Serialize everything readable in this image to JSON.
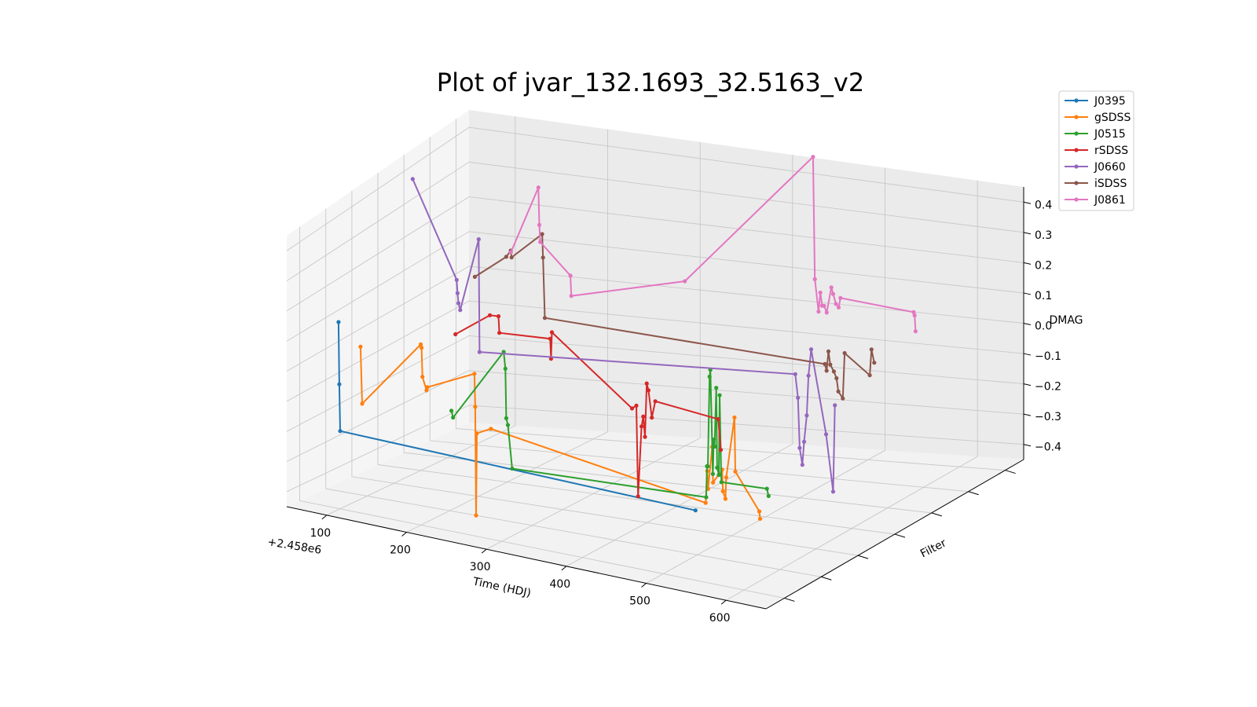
{
  "chart_data": {
    "type": "line",
    "projection": "3d",
    "title": "Plot of jvar_132.1693_32.5163_v2",
    "xlabel": "Time (HDJ)",
    "ylabel": "Filter",
    "zlabel": "DMAG",
    "x_offset_label": "+2.458e6",
    "xlim": [
      50,
      650
    ],
    "zlim": [
      -0.45,
      0.45
    ],
    "x_ticks": [
      100,
      200,
      300,
      400,
      500,
      600
    ],
    "x_tick_labels": [
      "100",
      "200",
      "300",
      "400",
      "500",
      "600"
    ],
    "z_ticks": [
      -0.4,
      -0.3,
      -0.2,
      -0.1,
      0.0,
      0.1,
      0.2,
      0.3,
      0.4
    ],
    "z_tick_labels": [
      "−0.4",
      "−0.3",
      "−0.2",
      "−0.1",
      "0.0",
      "0.1",
      "0.2",
      "0.3",
      "0.4"
    ],
    "grid": true,
    "legend_position": "upper-right",
    "series": [
      {
        "name": "J0395",
        "color": "#1f77b4",
        "filter_index": 0,
        "x": [
          98,
          99,
          100,
          540
        ],
        "y": [
          0.15,
          -0.05,
          -0.2,
          -0.26
        ]
      },
      {
        "name": "gSDSS",
        "color": "#ff7f0e",
        "filter_index": 1,
        "x": [
          92,
          94,
          165,
          166,
          167,
          172,
          173,
          230,
          231,
          232,
          233,
          250,
          510,
          512,
          513,
          518,
          519,
          530,
          531,
          534,
          535,
          545,
          546,
          575,
          576
        ],
        "y": [
          0.02,
          -0.16,
          0.05,
          0.04,
          -0.05,
          -0.09,
          -0.08,
          -0.02,
          -0.12,
          -0.45,
          -0.2,
          -0.18,
          -0.3,
          -0.21,
          -0.26,
          -0.14,
          -0.24,
          -0.2,
          -0.26,
          -0.28,
          -0.22,
          -0.05,
          -0.2,
          -0.3,
          -0.32
        ]
      },
      {
        "name": "J0515",
        "color": "#2ca02c",
        "filter_index": 2,
        "x": [
          168,
          170,
          230,
          232,
          233,
          235,
          240,
          470,
          471,
          472,
          474,
          475,
          478,
          479,
          480,
          482,
          483,
          485,
          486,
          488,
          542,
          544
        ],
        "y": [
          -0.2,
          -0.22,
          0.0,
          -0.05,
          -0.2,
          -0.22,
          -0.35,
          -0.35,
          -0.26,
          -0.26,
          0.0,
          0.02,
          -0.28,
          -0.18,
          -0.2,
          -0.03,
          -0.26,
          -0.28,
          -0.05,
          -0.3,
          -0.3,
          -0.32
        ]
      },
      {
        "name": "rSDSS",
        "color": "#d62728",
        "filter_index": 3,
        "x": [
          140,
          180,
          190,
          191,
          250,
          251,
          252,
          345,
          350,
          352,
          356,
          358,
          360,
          362,
          364,
          368,
          372,
          445,
          448
        ],
        "y": [
          -0.02,
          0.05,
          0.05,
          0.0,
          0.0,
          -0.06,
          0.02,
          -0.18,
          -0.17,
          -0.44,
          -0.23,
          -0.2,
          -0.26,
          -0.1,
          -0.12,
          -0.2,
          -0.15,
          -0.18,
          -0.27
        ]
      },
      {
        "name": "J0660",
        "color": "#9467bd",
        "filter_index": 4,
        "x": [
          60,
          110,
          111,
          112,
          114,
          135,
          136,
          495,
          498,
          500,
          503,
          505,
          508,
          510,
          513,
          530,
          538,
          540
        ],
        "y": [
          0.38,
          0.09,
          0.05,
          0.02,
          0.0,
          0.22,
          -0.12,
          -0.08,
          -0.15,
          -0.3,
          -0.35,
          -0.28,
          -0.2,
          -0.08,
          0.0,
          -0.25,
          -0.42,
          -0.16
        ]
      },
      {
        "name": "iSDSS",
        "color": "#8c564b",
        "filter_index": 5,
        "x": [
          100,
          135,
          140,
          141,
          175,
          176,
          178,
          490,
          492,
          494,
          496,
          500,
          503,
          505,
          510,
          512,
          540,
          542,
          545
        ],
        "y": [
          0.05,
          0.12,
          0.14,
          0.12,
          0.2,
          0.13,
          -0.05,
          -0.1,
          -0.12,
          -0.06,
          -0.1,
          -0.12,
          -0.14,
          -0.18,
          -0.2,
          -0.06,
          -0.12,
          -0.04,
          -0.08
        ]
      },
      {
        "name": "J0861",
        "color": "#e377c2",
        "filter_index": 6,
        "x": [
          110,
          140,
          141,
          142,
          175,
          176,
          300,
          440,
          442,
          446,
          448,
          450,
          452,
          455,
          460,
          462,
          465,
          468,
          470,
          550,
          551,
          552
        ],
        "y": [
          0.08,
          0.28,
          0.17,
          0.12,
          0.03,
          -0.03,
          0.05,
          0.48,
          0.1,
          0.0,
          0.06,
          0.02,
          0.02,
          0.0,
          0.08,
          0.06,
          0.03,
          0.02,
          0.05,
          0.03,
          0.02,
          -0.03
        ]
      }
    ]
  }
}
